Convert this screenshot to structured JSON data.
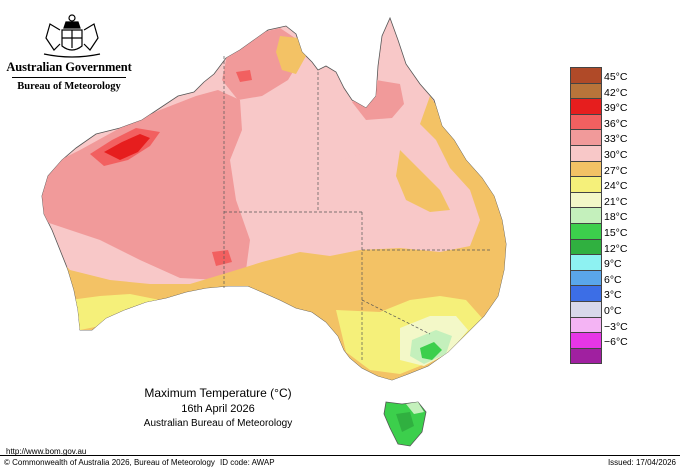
{
  "branding": {
    "government": "Australian Government",
    "agency": "Bureau of Meteorology",
    "emblem_icon": "commonwealth-coat-of-arms-icon"
  },
  "map": {
    "title": "Maximum Temperature (°C)",
    "date": "16th April 2026",
    "credit": "Australian Bureau of Meteorology"
  },
  "legend": {
    "items": [
      {
        "label": "45°C",
        "color": "#b04a28"
      },
      {
        "label": "42°C",
        "color": "#b8743a"
      },
      {
        "label": "39°C",
        "color": "#e61e1e"
      },
      {
        "label": "36°C",
        "color": "#f26060"
      },
      {
        "label": "33°C",
        "color": "#f19a9a"
      },
      {
        "label": "30°C",
        "color": "#f8c8c8"
      },
      {
        "label": "27°C",
        "color": "#f3c265"
      },
      {
        "label": "24°C",
        "color": "#f5f07a"
      },
      {
        "label": "21°C",
        "color": "#f3f8c8"
      },
      {
        "label": "18°C",
        "color": "#c4f0bc"
      },
      {
        "label": "15°C",
        "color": "#3ccf4c"
      },
      {
        "label": "12°C",
        "color": "#30b040"
      },
      {
        "label": "9°C",
        "color": "#8ef2f2"
      },
      {
        "label": "6°C",
        "color": "#5aa6ea"
      },
      {
        "label": "3°C",
        "color": "#3c6ee6"
      },
      {
        "label": "0°C",
        "color": "#d8d8ea"
      },
      {
        "label": "−3°C",
        "color": "#f4b4f4"
      },
      {
        "label": "−6°C",
        "color": "#e636e6"
      }
    ],
    "bottom_color": "#a020a0"
  },
  "colors": {
    "t42": "#b8743a",
    "t39": "#e61e1e",
    "t36": "#f26060",
    "t33": "#f19a9a",
    "t30": "#f8c8c8",
    "t27": "#f3c265",
    "t24": "#f5f07a",
    "t21": "#f3f8c8",
    "t18": "#c4f0bc",
    "t15": "#3ccf4c",
    "t12": "#30b040"
  },
  "footer": {
    "url": "http://www.bom.gov.au",
    "copyright": "© Commonwealth of Australia 2026, Bureau of Meteorology",
    "id_code": "ID code: AWAP",
    "issued": "Issued: 17/04/2026"
  }
}
